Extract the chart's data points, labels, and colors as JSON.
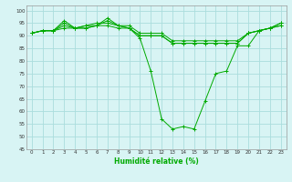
{
  "title": "",
  "xlabel": "Humidité relative (%)",
  "ylabel": "",
  "background_color": "#d8f4f4",
  "grid_color": "#aadddd",
  "line_color": "#00aa00",
  "marker_color": "#00aa00",
  "xlim": [
    -0.5,
    23.5
  ],
  "ylim": [
    45,
    102
  ],
  "yticks": [
    45,
    50,
    55,
    60,
    65,
    70,
    75,
    80,
    85,
    90,
    95,
    100
  ],
  "xticks": [
    0,
    1,
    2,
    3,
    4,
    5,
    6,
    7,
    8,
    9,
    10,
    11,
    12,
    13,
    14,
    15,
    16,
    17,
    18,
    19,
    20,
    21,
    22,
    23
  ],
  "series": [
    [
      91,
      92,
      92,
      95,
      93,
      94,
      94,
      97,
      94,
      93,
      89,
      76,
      57,
      53,
      54,
      53,
      64,
      75,
      76,
      86,
      86,
      92,
      93,
      95
    ],
    [
      91,
      92,
      92,
      96,
      93,
      94,
      95,
      95,
      94,
      94,
      91,
      91,
      91,
      88,
      88,
      88,
      88,
      88,
      88,
      88,
      91,
      92,
      93,
      95
    ],
    [
      91,
      92,
      92,
      94,
      93,
      93,
      94,
      94,
      93,
      93,
      90,
      90,
      90,
      87,
      87,
      87,
      87,
      87,
      87,
      87,
      91,
      92,
      93,
      94
    ],
    [
      91,
      92,
      92,
      93,
      93,
      93,
      94,
      96,
      94,
      93,
      90,
      90,
      90,
      87,
      87,
      87,
      87,
      87,
      87,
      87,
      91,
      92,
      93,
      94
    ]
  ]
}
